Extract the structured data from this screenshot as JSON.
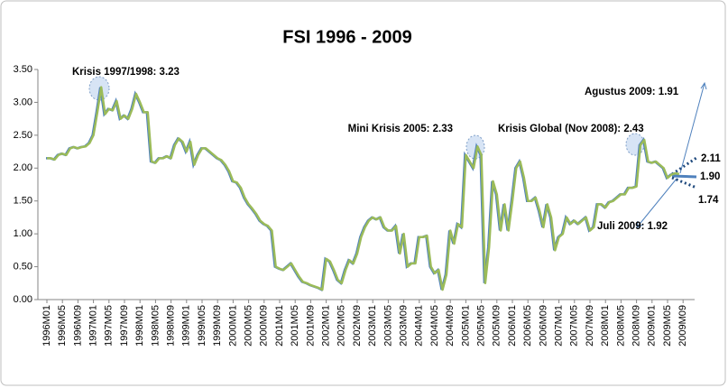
{
  "chart_data": {
    "type": "line",
    "title": "FSI 1996 - 2009",
    "categories": [
      "1996M01",
      null,
      null,
      null,
      "1996M05",
      null,
      null,
      null,
      "1996M09",
      null,
      null,
      null,
      "1997M01",
      null,
      null,
      null,
      "1997M05",
      null,
      null,
      null,
      "1997M09",
      null,
      null,
      null,
      "1998M01",
      null,
      null,
      null,
      "1998M05",
      null,
      null,
      null,
      "1998M09",
      null,
      null,
      null,
      "1999M01",
      null,
      null,
      null,
      "1999M05",
      null,
      null,
      null,
      "1999M09",
      null,
      null,
      null,
      "2000M01",
      null,
      null,
      null,
      "2000M05",
      null,
      null,
      null,
      "2000M09",
      null,
      null,
      null,
      "2001M01",
      null,
      null,
      null,
      "2001M05",
      null,
      null,
      null,
      "2001M09",
      null,
      null,
      null,
      "2002M01",
      null,
      null,
      null,
      "2002M05",
      null,
      null,
      null,
      "2002M09",
      null,
      null,
      null,
      "2003M01",
      null,
      null,
      null,
      "2003M05",
      null,
      null,
      null,
      "2003M09",
      null,
      null,
      null,
      "2004M01",
      null,
      null,
      null,
      "2004M05",
      null,
      null,
      null,
      "2004M09",
      null,
      null,
      null,
      "2005M01",
      null,
      null,
      null,
      "2005M05",
      null,
      null,
      null,
      "2005M09",
      null,
      null,
      null,
      "2006M01",
      null,
      null,
      null,
      "2006M05",
      null,
      null,
      null,
      "2006M09",
      null,
      null,
      null,
      "2007M01",
      null,
      null,
      null,
      "2007M05",
      null,
      null,
      null,
      "2007M09",
      null,
      null,
      null,
      "2008M01",
      null,
      null,
      null,
      "2008M05",
      null,
      null,
      null,
      "2008M09",
      null,
      null,
      null,
      "2009M01",
      null,
      null,
      null,
      "2009M05",
      null,
      null,
      null,
      "2009M09",
      null,
      null,
      null
    ],
    "series": [
      {
        "name": "FSI",
        "color": "#9bbb59",
        "values": [
          2.15,
          2.15,
          2.13,
          2.2,
          2.22,
          2.2,
          2.3,
          2.32,
          2.3,
          2.32,
          2.33,
          2.38,
          2.5,
          2.85,
          3.23,
          2.82,
          2.9,
          2.88,
          3.02,
          2.75,
          2.8,
          2.75,
          2.9,
          3.13,
          3.0,
          2.85,
          2.85,
          2.1,
          2.08,
          2.15,
          2.15,
          2.18,
          2.15,
          2.35,
          2.45,
          2.4,
          2.25,
          2.4,
          2.05,
          2.2,
          2.3,
          2.3,
          2.25,
          2.2,
          2.15,
          2.12,
          2.05,
          1.95,
          1.8,
          1.78,
          1.7,
          1.55,
          1.45,
          1.38,
          1.3,
          1.2,
          1.15,
          1.12,
          1.05,
          0.5,
          0.47,
          0.45,
          0.5,
          0.55,
          0.45,
          0.35,
          0.27,
          0.25,
          0.22,
          0.2,
          0.18,
          0.15,
          0.62,
          0.58,
          0.45,
          0.3,
          0.25,
          0.45,
          0.6,
          0.55,
          0.7,
          0.95,
          1.1,
          1.2,
          1.25,
          1.22,
          1.25,
          1.1,
          1.05,
          1.05,
          1.12,
          0.7,
          1.0,
          0.5,
          0.55,
          0.55,
          0.95,
          0.95,
          0.97,
          0.5,
          0.4,
          0.45,
          0.15,
          0.38,
          1.05,
          0.85,
          1.15,
          1.1,
          2.2,
          2.1,
          2.0,
          2.33,
          2.2,
          0.25,
          0.8,
          1.8,
          1.6,
          1.05,
          1.45,
          1.05,
          1.5,
          2.0,
          2.1,
          1.85,
          1.5,
          1.5,
          1.55,
          1.35,
          1.1,
          1.45,
          1.25,
          0.75,
          0.95,
          1.0,
          1.25,
          1.15,
          1.2,
          1.15,
          1.2,
          1.25,
          1.05,
          1.1,
          1.45,
          1.45,
          1.4,
          1.48,
          1.5,
          1.55,
          1.6,
          1.6,
          1.7,
          1.7,
          1.72,
          2.35,
          2.43,
          2.1,
          2.08,
          2.1,
          2.05,
          2.0,
          1.85,
          1.9,
          1.92,
          1.91,
          null,
          null,
          null,
          null
        ]
      }
    ],
    "ylim": [
      0,
      3.5
    ],
    "yticks": [
      {
        "value": 0,
        "label": "0.00"
      },
      {
        "value": 0.5,
        "label": "0.50"
      },
      {
        "value": 1,
        "label": "1.00"
      },
      {
        "value": 1.5,
        "label": "1.50"
      },
      {
        "value": 2,
        "label": "2.00"
      },
      {
        "value": 2.5,
        "label": "2.50"
      },
      {
        "value": 3,
        "label": "3.00"
      },
      {
        "value": 3.5,
        "label": "3.50"
      }
    ],
    "grid": false,
    "annotations": [
      "Krisis 1997/1998:  3.23",
      "Mini Krisis 2005: 2.33",
      "Krisis Global (Nov 2008): 2.43",
      "Agustus 2009:  1.91",
      "Juli 2009: 1.92",
      "2.11",
      "1.90",
      "1.74"
    ]
  }
}
